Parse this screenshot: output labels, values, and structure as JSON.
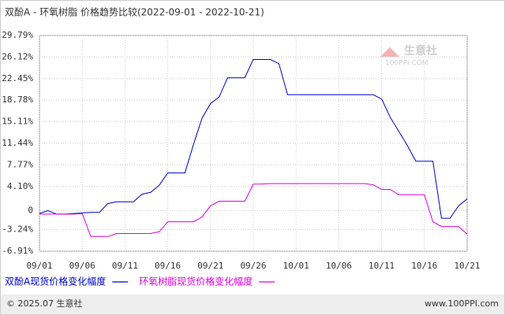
{
  "chart_data": {
    "type": "line",
    "title": "双酚A - 环氧树脂 价格趋势比较(2022-09-01 - 2022-10-21)",
    "x": [
      "09/01",
      "09/02",
      "09/03",
      "09/04",
      "09/05",
      "09/06",
      "09/07",
      "09/08",
      "09/09",
      "09/10",
      "09/11",
      "09/12",
      "09/13",
      "09/14",
      "09/15",
      "09/16",
      "09/17",
      "09/18",
      "09/19",
      "09/20",
      "09/21",
      "09/22",
      "09/23",
      "09/24",
      "09/25",
      "09/26",
      "09/27",
      "09/28",
      "09/29",
      "09/30",
      "10/01",
      "10/02",
      "10/03",
      "10/04",
      "10/05",
      "10/06",
      "10/07",
      "10/08",
      "10/09",
      "10/10",
      "10/11",
      "10/12",
      "10/13",
      "10/14",
      "10/15",
      "10/16",
      "10/17",
      "10/18",
      "10/19",
      "10/20",
      "10/21"
    ],
    "xticks": [
      "09/01",
      "09/06",
      "09/11",
      "09/16",
      "09/21",
      "09/26",
      "10/01",
      "10/06",
      "10/11",
      "10/16",
      "10/21"
    ],
    "series": [
      {
        "name": "双酚A现货价格变化幅度",
        "color": "#0000cc",
        "values": [
          -0.5,
          0.0,
          -0.6,
          -0.6,
          -0.5,
          -0.4,
          -0.3,
          -0.3,
          1.2,
          1.5,
          1.5,
          1.5,
          2.8,
          3.1,
          4.3,
          6.4,
          6.4,
          6.4,
          11.2,
          15.7,
          18.2,
          19.3,
          22.6,
          22.6,
          22.6,
          25.7,
          25.7,
          25.7,
          25.0,
          19.7,
          19.7,
          19.7,
          19.7,
          19.7,
          19.7,
          19.7,
          19.7,
          19.7,
          19.7,
          19.7,
          19.0,
          15.9,
          13.5,
          11.1,
          8.4,
          8.4,
          8.4,
          -1.3,
          -1.3,
          0.8,
          2.0
        ]
      },
      {
        "name": "环氧树脂现货价格变化幅度",
        "color": "#e000e0",
        "values": [
          -0.6,
          -0.6,
          -0.6,
          -0.6,
          -0.6,
          -0.5,
          -4.4,
          -4.4,
          -4.4,
          -3.9,
          -3.9,
          -3.9,
          -3.9,
          -3.9,
          -3.6,
          -1.9,
          -1.9,
          -1.9,
          -1.9,
          -1.1,
          0.8,
          1.6,
          1.6,
          1.6,
          1.6,
          4.5,
          4.5,
          4.6,
          4.6,
          4.6,
          4.6,
          4.6,
          4.6,
          4.6,
          4.6,
          4.6,
          4.6,
          4.6,
          4.6,
          4.4,
          3.6,
          3.6,
          2.7,
          2.7,
          2.7,
          2.7,
          -1.9,
          -2.7,
          -2.7,
          -2.7,
          -4.0
        ]
      }
    ],
    "ylim": [
      -6.91,
      29.79
    ],
    "yticks": [
      {
        "value": -6.91,
        "label": "-6.91%"
      },
      {
        "value": -3.24,
        "label": "-3.24%"
      },
      0,
      {
        "value": 4.1,
        "label": "4.10%"
      },
      {
        "value": 7.77,
        "label": "7.77%"
      },
      {
        "value": 11.44,
        "label": "11.44%"
      },
      {
        "value": 15.11,
        "label": "15.11%"
      },
      {
        "value": 18.78,
        "label": "18.78%"
      },
      {
        "value": 22.45,
        "label": "22.45%"
      },
      {
        "value": 26.12,
        "label": "26.12%"
      },
      {
        "value": 29.79,
        "label": "29.79%"
      }
    ],
    "grid": true,
    "watermark": "生意社",
    "watermark_url": "100PPI.COM",
    "footer_left": "© 2025.07 生意社",
    "footer_right": "www.100PPI.com"
  }
}
